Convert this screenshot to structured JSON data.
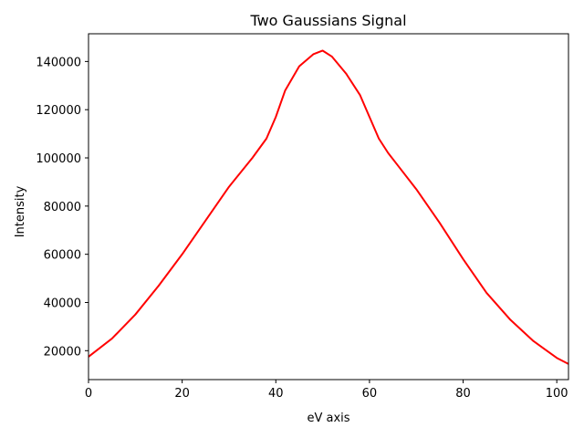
{
  "chart_data": {
    "type": "line",
    "title": "Two Gaussians Signal",
    "xlabel": "eV axis",
    "ylabel": "Intensity",
    "xlim": [
      0,
      102.5
    ],
    "ylim": [
      8000,
      151500
    ],
    "xticks": [
      0,
      20,
      40,
      60,
      80,
      100
    ],
    "yticks": [
      20000,
      40000,
      60000,
      80000,
      100000,
      120000,
      140000
    ],
    "grid": false,
    "legend": "none",
    "series": [
      {
        "color": "#ff0000",
        "x": [
          0,
          5,
          10,
          15,
          20,
          25,
          30,
          35,
          38,
          40,
          42,
          45,
          48,
          50,
          52,
          55,
          58,
          60,
          62,
          64,
          66,
          70,
          75,
          80,
          85,
          90,
          95,
          100,
          102.5
        ],
        "y": [
          17500,
          25000,
          35000,
          47000,
          60000,
          74000,
          88000,
          100000,
          108000,
          117000,
          128000,
          138000,
          143000,
          144500,
          142000,
          135000,
          126000,
          117000,
          108000,
          102000,
          97000,
          87000,
          73000,
          58000,
          44000,
          33000,
          24000,
          17000,
          14500
        ]
      }
    ]
  }
}
